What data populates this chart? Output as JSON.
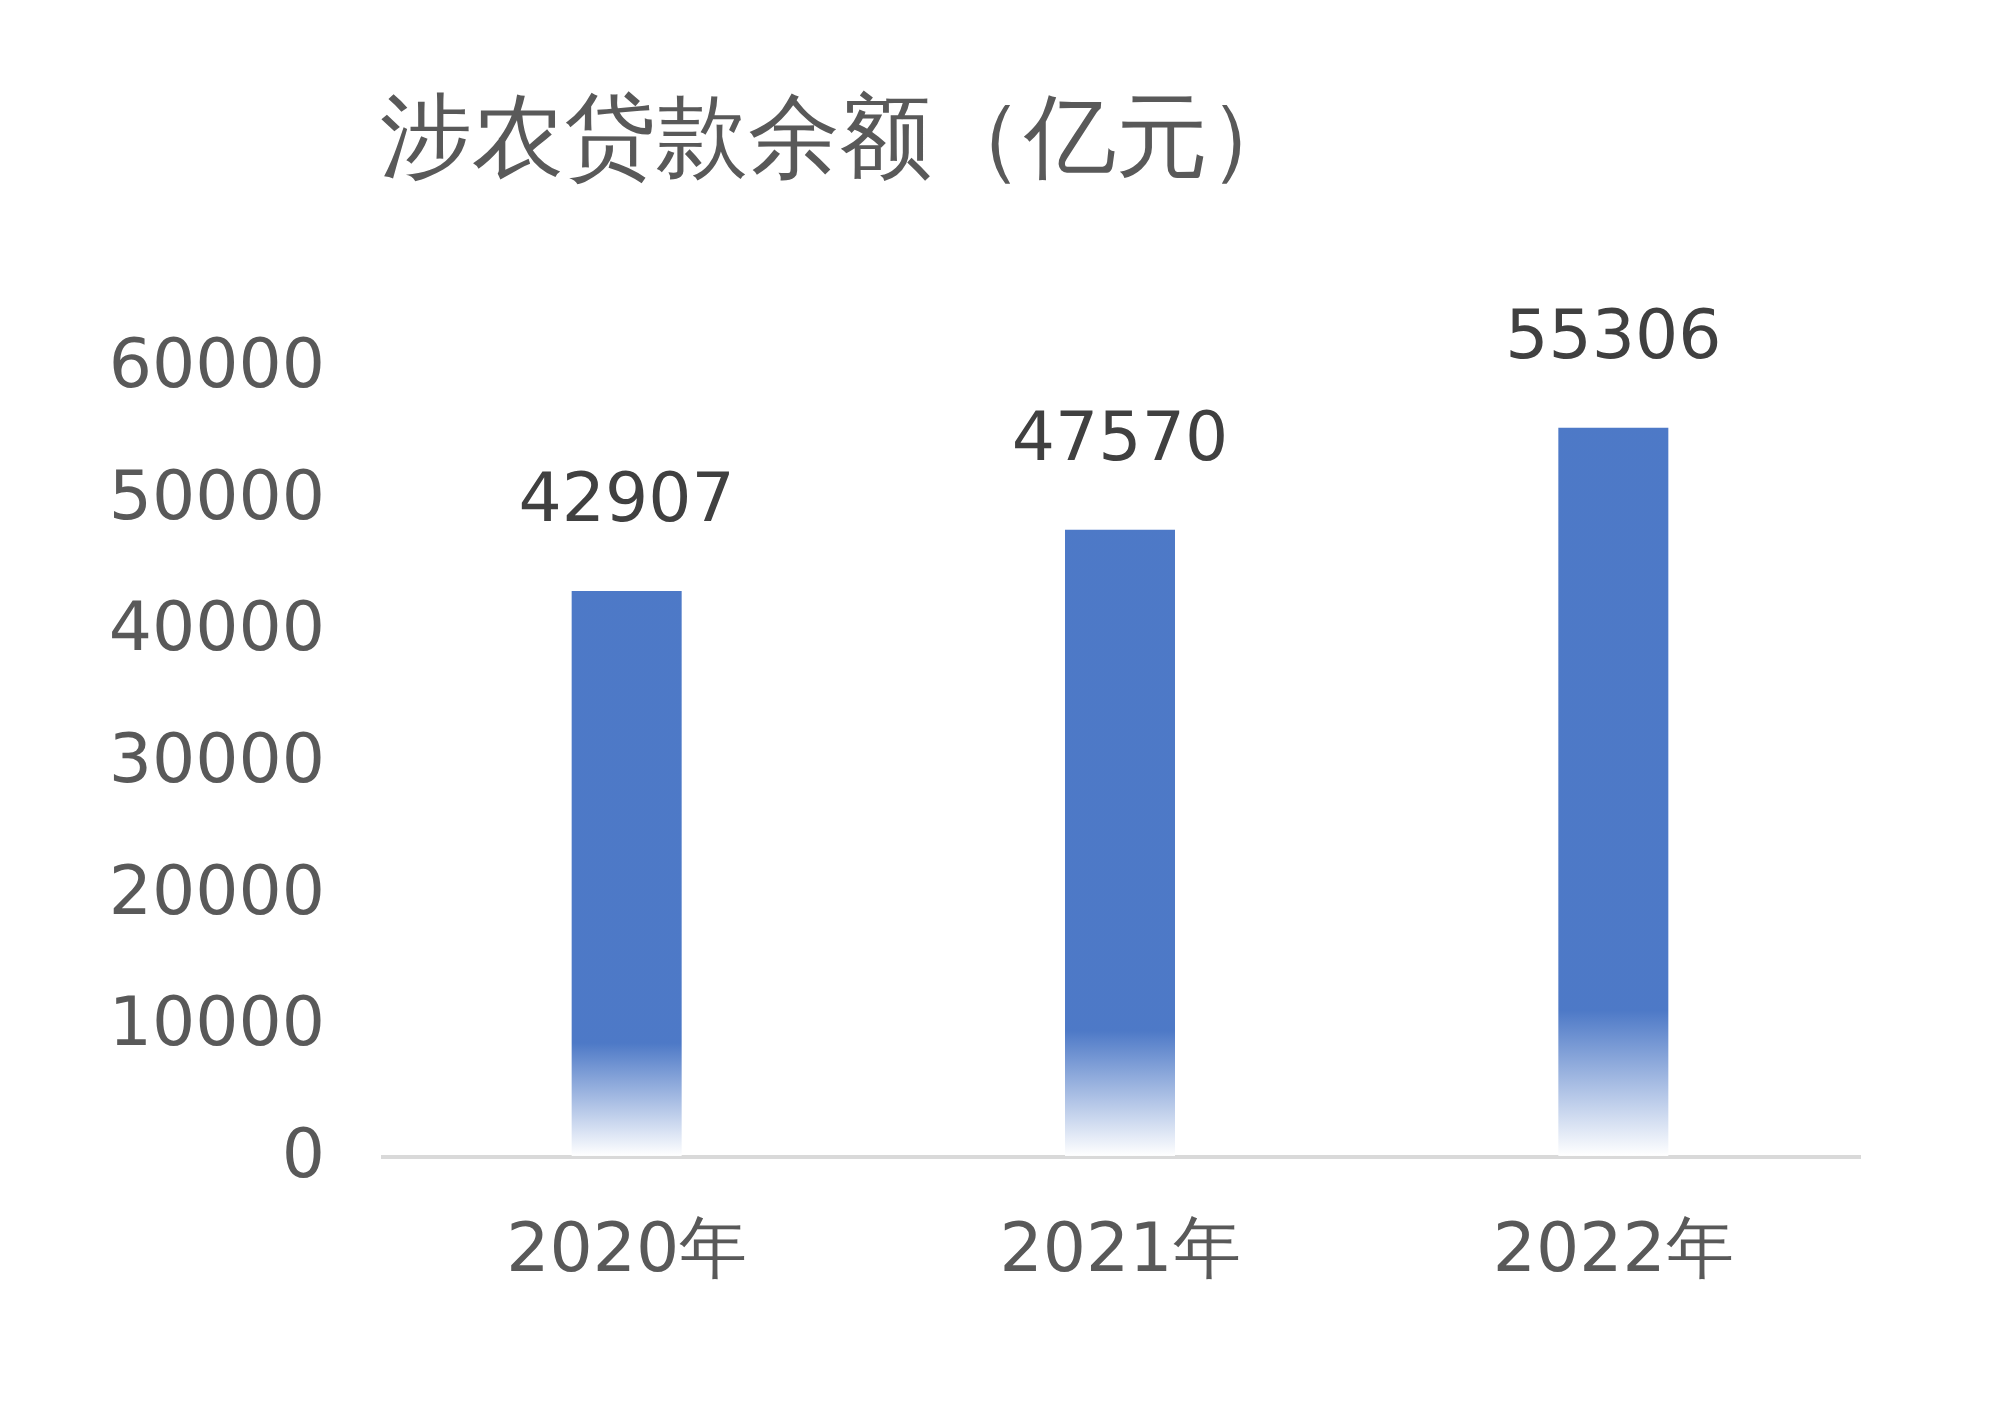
{
  "chart_data": {
    "type": "bar",
    "title": "涉农贷款余额（亿元）",
    "categories": [
      "2020年",
      "2021年",
      "2022年"
    ],
    "values": [
      42907,
      47570,
      55306
    ],
    "color": "#4472c4",
    "ylim": [
      0,
      60000
    ],
    "yticks": [
      0,
      10000,
      20000,
      30000,
      40000,
      50000,
      60000
    ],
    "grid": false,
    "data_labels": true
  }
}
